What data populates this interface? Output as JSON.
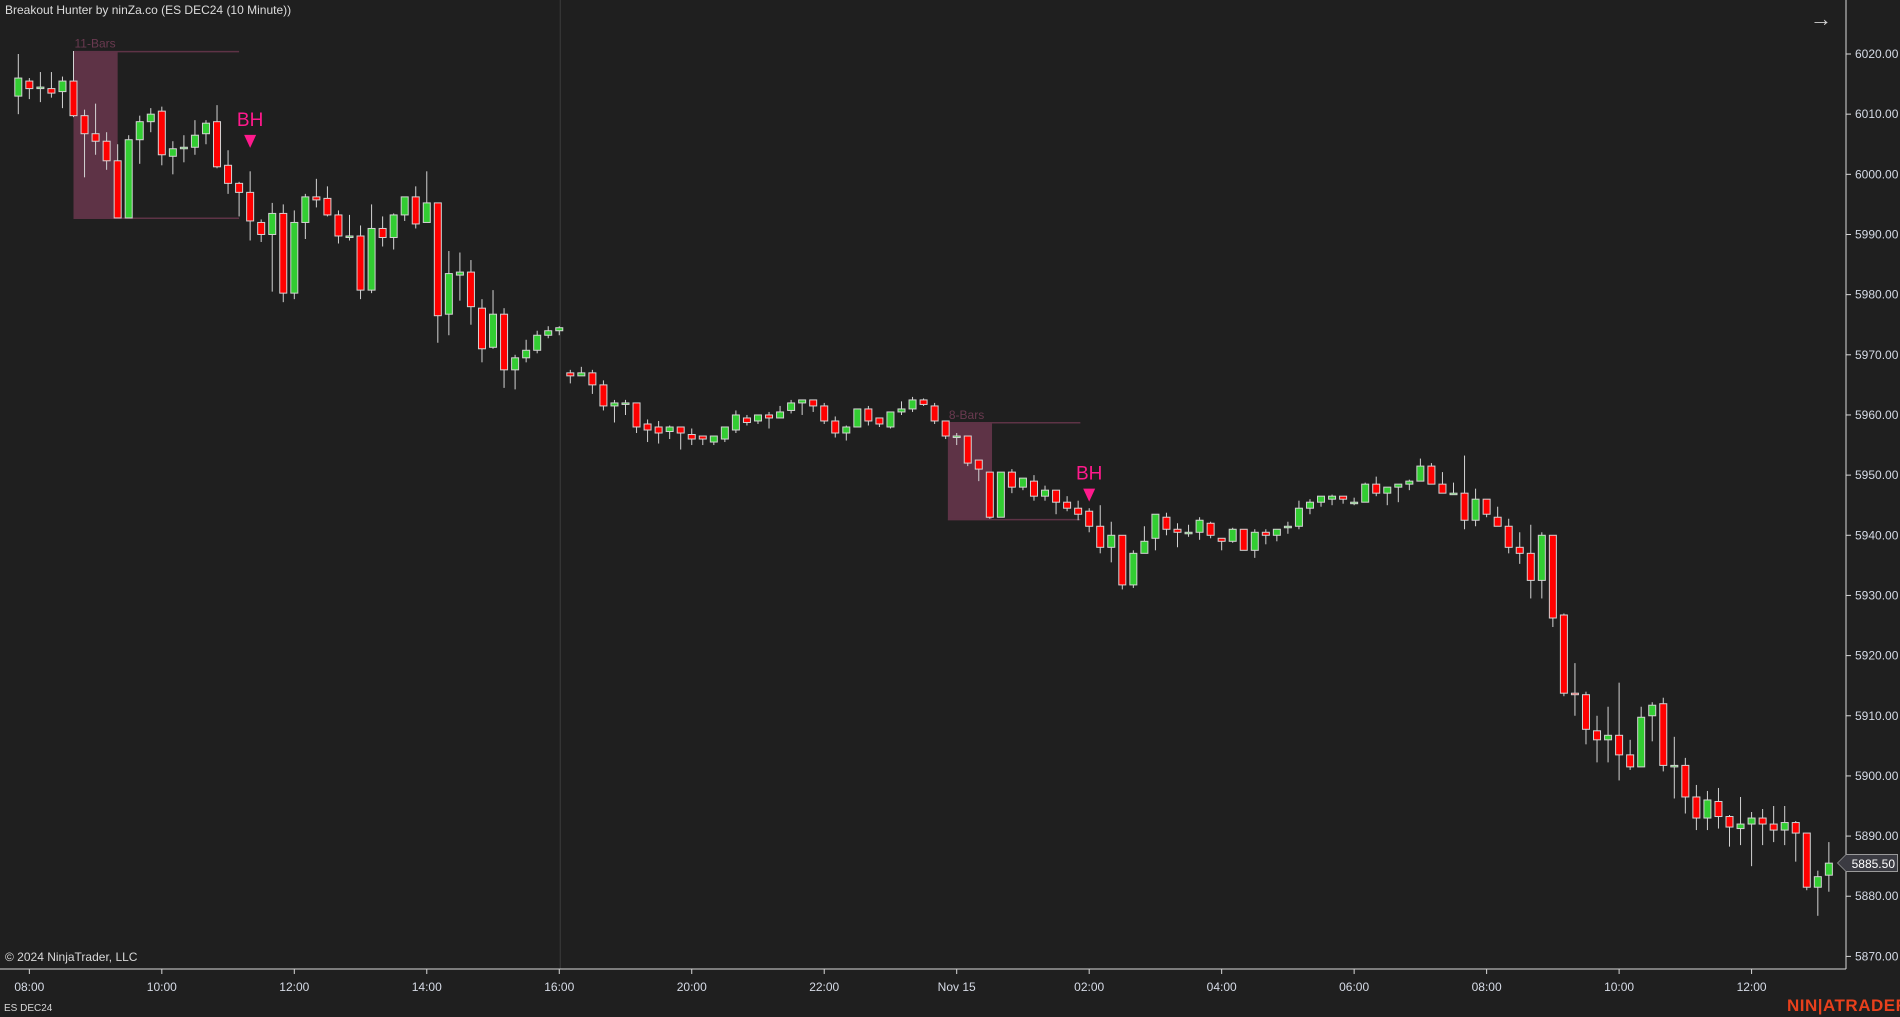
{
  "header": {
    "title": "Breakout Hunter by ninZa.co (ES DEC24 (10 Minute))"
  },
  "footer": {
    "copyright": "© 2024 NinjaTrader, LLC",
    "instrument": "ES DEC24",
    "logo": "NINJATRADER"
  },
  "colors": {
    "background": "#1f1f1f",
    "up": "#32cd32",
    "down": "#ff0000",
    "outline": "#d3d3d3",
    "box": "#5e3346",
    "marker": "#ff1a8c",
    "axis": "#d8d8d8"
  },
  "chart_data": {
    "type": "candlestick",
    "title": "Breakout Hunter by ninZa.co (ES DEC24 (10 Minute))",
    "ylim": [
      5868,
      6029
    ],
    "y_ticks": [
      "6020.00",
      "6010.00",
      "6000.00",
      "5990.00",
      "5980.00",
      "5970.00",
      "5960.00",
      "5950.00",
      "5940.00",
      "5930.00",
      "5920.00",
      "5910.00",
      "5900.00",
      "5890.00",
      "5880.00",
      "5870.00"
    ],
    "x_labels": [
      {
        "bar": 2,
        "label": "08:00"
      },
      {
        "bar": 14,
        "label": "10:00"
      },
      {
        "bar": 26,
        "label": "12:00"
      },
      {
        "bar": 38,
        "label": "14:00"
      },
      {
        "bar": 50,
        "label": "16:00"
      },
      {
        "bar": 62,
        "label": "20:00"
      },
      {
        "bar": 74,
        "label": "22:00"
      },
      {
        "bar": 86,
        "label": "Nov 15"
      },
      {
        "bar": 98,
        "label": "02:00"
      },
      {
        "bar": 110,
        "label": "04:00"
      },
      {
        "bar": 122,
        "label": "06:00"
      },
      {
        "bar": 134,
        "label": "08:00"
      },
      {
        "bar": 146,
        "label": "10:00"
      },
      {
        "bar": 158,
        "label": "12:00"
      }
    ],
    "session_break_after_bar": 50,
    "last_price": "5885.50",
    "ohlc_fields": [
      "open",
      "high",
      "low",
      "close"
    ],
    "bars": [
      [
        6013,
        6020,
        6010,
        6016
      ],
      [
        6015.5,
        6016,
        6012.5,
        6014.25
      ],
      [
        6014.5,
        6017,
        6012,
        6014.5
      ],
      [
        6014.25,
        6017,
        6012.75,
        6013.5
      ],
      [
        6013.75,
        6016.25,
        6011,
        6015.5
      ],
      [
        6015.5,
        6020.5,
        6009.5,
        6009.75
      ],
      [
        6009.75,
        6010.75,
        5999.5,
        6006.75
      ],
      [
        6006.75,
        6011.75,
        6003.25,
        6005.5
      ],
      [
        6005.5,
        6007,
        6000.75,
        6002.25
      ],
      [
        6002.25,
        6005,
        5992.75,
        5992.75
      ],
      [
        5992.75,
        6006.5,
        5992.75,
        6005.75
      ],
      [
        6005.75,
        6009.75,
        6001.75,
        6008.75
      ],
      [
        6008.75,
        6011,
        6007,
        6010
      ],
      [
        6010.5,
        6011.25,
        6001.5,
        6003.25
      ],
      [
        6003,
        6005.5,
        6000,
        6004.25
      ],
      [
        6004.25,
        6006.5,
        6002,
        6004.5
      ],
      [
        6004.5,
        6009,
        6003.25,
        6006.5
      ],
      [
        6006.75,
        6009,
        6005,
        6008.5
      ],
      [
        6008.75,
        6011.5,
        6001,
        6001.25
      ],
      [
        6001.5,
        6004,
        5996.75,
        5998.5
      ],
      [
        5998.5,
        5998.75,
        5993,
        5997
      ],
      [
        5997,
        6000.5,
        5989,
        5992.25
      ],
      [
        5992,
        5992.5,
        5988.75,
        5990
      ],
      [
        5990,
        5995.25,
        5980.5,
        5993.5
      ],
      [
        5993.5,
        5995,
        5978.75,
        5980.25
      ],
      [
        5980.25,
        5994,
        5979.25,
        5992
      ],
      [
        5992,
        5996.75,
        5989.25,
        5996.25
      ],
      [
        5996.25,
        5999.25,
        5994.5,
        5995.75
      ],
      [
        5996,
        5998,
        5993,
        5993.25
      ],
      [
        5993.25,
        5994,
        5988.5,
        5989.75
      ],
      [
        5989.75,
        5993.25,
        5989,
        5989.75
      ],
      [
        5989.75,
        5991.5,
        5979.25,
        5980.75
      ],
      [
        5980.75,
        5995,
        5980.25,
        5991
      ],
      [
        5991,
        5993,
        5988,
        5989.5
      ],
      [
        5989.5,
        5993.5,
        5987.5,
        5993.25
      ],
      [
        5993.25,
        5996.25,
        5992.25,
        5996.25
      ],
      [
        5996.25,
        5998,
        5991,
        5991.75
      ],
      [
        5992,
        6000.5,
        5992,
        5995.25
      ],
      [
        5995.25,
        5995.25,
        5972,
        5976.5
      ],
      [
        5976.75,
        5987.25,
        5973.25,
        5983.5
      ],
      [
        5983.25,
        5987,
        5979,
        5983.75
      ],
      [
        5983.75,
        5985.75,
        5975,
        5978
      ],
      [
        5977.75,
        5979.25,
        5968.75,
        5971
      ],
      [
        5971.25,
        5980.75,
        5971,
        5976.75
      ],
      [
        5976.75,
        5977.75,
        5964.5,
        5967.5
      ],
      [
        5967.5,
        5970,
        5964.25,
        5969.5
      ],
      [
        5969.5,
        5972.5,
        5968.75,
        5970.75
      ],
      [
        5970.75,
        5974,
        5970.25,
        5973.25
      ],
      [
        5973.25,
        5974.75,
        5972.75,
        5974
      ],
      [
        5974,
        5974.75,
        5973.25,
        5974.5
      ],
      [
        5967,
        5967.5,
        5965.25,
        5966.5
      ],
      [
        5966.5,
        5968,
        5966.5,
        5967
      ],
      [
        5967,
        5967.5,
        5963.5,
        5965
      ],
      [
        5965,
        5965.75,
        5960.75,
        5961.5
      ],
      [
        5961.5,
        5962.5,
        5958.75,
        5962
      ],
      [
        5962,
        5962.5,
        5960,
        5962
      ],
      [
        5962,
        5962,
        5957,
        5958
      ],
      [
        5958.5,
        5959.25,
        5955.5,
        5957.5
      ],
      [
        5958,
        5959,
        5955.25,
        5957
      ],
      [
        5957.25,
        5958.25,
        5956,
        5958
      ],
      [
        5958,
        5958,
        5954.25,
        5957
      ],
      [
        5956.75,
        5957.75,
        5955,
        5956
      ],
      [
        5956.5,
        5956.5,
        5955,
        5956
      ],
      [
        5955.5,
        5956.5,
        5955,
        5956.5
      ],
      [
        5956,
        5958,
        5955.5,
        5958
      ],
      [
        5957.5,
        5960.75,
        5957,
        5960
      ],
      [
        5959.5,
        5960,
        5958.25,
        5958.75
      ],
      [
        5959,
        5960,
        5958.5,
        5960
      ],
      [
        5960,
        5960.5,
        5957.75,
        5959.5
      ],
      [
        5959.5,
        5961.5,
        5959.5,
        5960.5
      ],
      [
        5960.75,
        5962.5,
        5960.25,
        5962
      ],
      [
        5962,
        5962.5,
        5960,
        5962.5
      ],
      [
        5962.5,
        5962.5,
        5960.5,
        5961.5
      ],
      [
        5961.5,
        5962,
        5958.5,
        5959
      ],
      [
        5959,
        5959.75,
        5956.25,
        5957
      ],
      [
        5957,
        5958.25,
        5955.75,
        5958
      ],
      [
        5958,
        5961,
        5958,
        5961
      ],
      [
        5961,
        5961.5,
        5958.25,
        5959
      ],
      [
        5959.5,
        5959.5,
        5958,
        5958.5
      ],
      [
        5958,
        5960.5,
        5957.75,
        5960.5
      ],
      [
        5960.5,
        5962.25,
        5960,
        5961
      ],
      [
        5961,
        5963,
        5960.5,
        5962.5
      ],
      [
        5962.5,
        5962.75,
        5961.5,
        5961.75
      ],
      [
        5961.5,
        5962,
        5958.5,
        5959
      ],
      [
        5959,
        5959,
        5956,
        5956.5
      ],
      [
        5956.5,
        5957,
        5955,
        5956.5
      ],
      [
        5956.5,
        5956.5,
        5951.5,
        5952
      ],
      [
        5952.5,
        5952.5,
        5949,
        5951
      ],
      [
        5950.5,
        5950.5,
        5942.75,
        5943
      ],
      [
        5943,
        5950.5,
        5943,
        5950.5
      ],
      [
        5950.5,
        5951,
        5947,
        5948
      ],
      [
        5948,
        5949.5,
        5947.5,
        5949.5
      ],
      [
        5949,
        5950,
        5945.75,
        5946.5
      ],
      [
        5946.5,
        5948.25,
        5945.75,
        5947.5
      ],
      [
        5947.5,
        5947.5,
        5943.5,
        5945.5
      ],
      [
        5945.5,
        5946.5,
        5944,
        5944.5
      ],
      [
        5944.5,
        5945.75,
        5942.5,
        5943.5
      ],
      [
        5944,
        5944.5,
        5940.5,
        5941.5
      ],
      [
        5941.5,
        5945,
        5937,
        5938
      ],
      [
        5938,
        5942.25,
        5935.5,
        5940
      ],
      [
        5940,
        5940,
        5931,
        5931.75
      ],
      [
        5931.75,
        5937.5,
        5931.25,
        5937
      ],
      [
        5937,
        5941.5,
        5937,
        5939
      ],
      [
        5939.5,
        5943.5,
        5937.5,
        5943.5
      ],
      [
        5943,
        5943.75,
        5940,
        5941
      ],
      [
        5941,
        5942,
        5938,
        5940.5
      ],
      [
        5940.5,
        5941.75,
        5939.75,
        5940.5
      ],
      [
        5940.5,
        5943,
        5939.25,
        5942.5
      ],
      [
        5942,
        5942.25,
        5939.5,
        5940
      ],
      [
        5939.5,
        5939.5,
        5937.5,
        5939
      ],
      [
        5939,
        5941.25,
        5938.75,
        5941
      ],
      [
        5941,
        5941,
        5937.5,
        5937.5
      ],
      [
        5937.5,
        5941,
        5936.25,
        5940.5
      ],
      [
        5940.5,
        5941,
        5938.5,
        5940
      ],
      [
        5940,
        5941,
        5939,
        5941
      ],
      [
        5941.5,
        5942.25,
        5940.25,
        5941.5
      ],
      [
        5941.5,
        5945.75,
        5941,
        5944.5
      ],
      [
        5944.5,
        5946,
        5943.5,
        5945.5
      ],
      [
        5945.5,
        5946.5,
        5944.75,
        5946.5
      ],
      [
        5946,
        5946.75,
        5945,
        5946.5
      ],
      [
        5946.5,
        5946.5,
        5945.25,
        5946
      ],
      [
        5945.5,
        5946.25,
        5945,
        5945.5
      ],
      [
        5945.5,
        5948.75,
        5945.5,
        5948.5
      ],
      [
        5948.5,
        5949.75,
        5946.5,
        5947
      ],
      [
        5947,
        5948,
        5945,
        5948
      ],
      [
        5948,
        5948.5,
        5945.5,
        5948.5
      ],
      [
        5948.5,
        5949.25,
        5947.5,
        5949
      ],
      [
        5949,
        5952.75,
        5949,
        5951.5
      ],
      [
        5951.5,
        5952,
        5948.5,
        5948.5
      ],
      [
        5948.5,
        5950.5,
        5947,
        5947
      ],
      [
        5947,
        5948.75,
        5947,
        5947
      ],
      [
        5947,
        5953.25,
        5941,
        5942.5
      ],
      [
        5942.5,
        5947.75,
        5941.5,
        5946
      ],
      [
        5946,
        5946,
        5943,
        5943.5
      ],
      [
        5943,
        5944.75,
        5941.5,
        5941.5
      ],
      [
        5941.5,
        5942.75,
        5937,
        5938
      ],
      [
        5938,
        5940.5,
        5935.25,
        5937
      ],
      [
        5937,
        5941.75,
        5929.5,
        5932.5
      ],
      [
        5932.5,
        5940.5,
        5929.5,
        5940
      ],
      [
        5940,
        5940,
        5924.75,
        5926.25
      ],
      [
        5926.75,
        5927,
        5913.25,
        5913.75
      ],
      [
        5913.75,
        5918.75,
        5910,
        5913.5
      ],
      [
        5913.5,
        5914,
        5905.25,
        5907.75
      ],
      [
        5907.5,
        5910,
        5902.25,
        5906
      ],
      [
        5906,
        5911.5,
        5902.25,
        5906.75
      ],
      [
        5906.75,
        5915.5,
        5899.25,
        5903.5
      ],
      [
        5903.5,
        5906,
        5901,
        5901.5
      ],
      [
        5901.5,
        5911.5,
        5901.5,
        5909.75
      ],
      [
        5910,
        5912.25,
        5905.75,
        5911.75
      ],
      [
        5912,
        5913,
        5900.75,
        5901.75
      ],
      [
        5901.75,
        5906.5,
        5896.25,
        5901.75
      ],
      [
        5901.75,
        5903,
        5893.75,
        5896.5
      ],
      [
        5896.5,
        5898.5,
        5891,
        5893
      ],
      [
        5893,
        5897.5,
        5891,
        5896
      ],
      [
        5895.75,
        5898,
        5891.25,
        5893.25
      ],
      [
        5893.25,
        5893.5,
        5888.25,
        5891.5
      ],
      [
        5891.25,
        5896.5,
        5888.5,
        5892
      ],
      [
        5892,
        5894,
        5885,
        5893
      ],
      [
        5893,
        5894.5,
        5888.5,
        5892
      ],
      [
        5892,
        5895,
        5889,
        5891
      ],
      [
        5891,
        5895,
        5888.5,
        5892.25
      ],
      [
        5892.25,
        5892.5,
        5885.75,
        5890.5
      ],
      [
        5890.5,
        5890.5,
        5881,
        5881.5
      ],
      [
        5881.5,
        5884.25,
        5876.75,
        5883.25
      ],
      [
        5883.5,
        5889,
        5880.75,
        5885.5
      ]
    ],
    "breakout_boxes": [
      {
        "label": "11-Bars",
        "start_bar": 6,
        "end_bar": 10,
        "line_end_bar": 21,
        "top": 6020.4,
        "bottom": 5992.7
      },
      {
        "label": "8-Bars",
        "start_bar": 85.2,
        "end_bar": 89.2,
        "line_end_bar": 97.2,
        "top": 5958.7,
        "bottom": 5942.6
      }
    ],
    "signals": [
      {
        "label": "BH",
        "bar": 22,
        "price": 6004.4,
        "direction": "down"
      },
      {
        "label": "BH",
        "bar": 98,
        "price": 5945.6,
        "direction": "down"
      }
    ]
  }
}
